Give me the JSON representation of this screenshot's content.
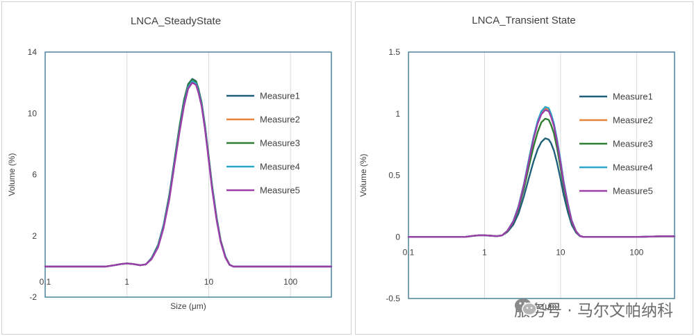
{
  "chart_data": [
    {
      "type": "line",
      "title": "LNCA_SteadyState",
      "xlabel": "Size (μm)",
      "ylabel": "Volume (%)",
      "xscale": "log",
      "xlim": [
        0.1,
        316
      ],
      "ylim": [
        -2,
        14
      ],
      "yticks": [
        14,
        10,
        6,
        2,
        -2
      ],
      "ytick_labels": [
        "14",
        "10",
        "6",
        "2",
        "-2"
      ],
      "xticks": [
        0.1,
        1,
        10,
        100
      ],
      "xtick_labels": [
        "0.1",
        "1",
        "10",
        "100"
      ],
      "grid": "vertical",
      "legend_position": "right",
      "x": [
        0.1,
        0.2,
        0.4,
        0.55,
        0.7,
        0.85,
        1,
        1.2,
        1.45,
        1.7,
        2,
        2.4,
        2.8,
        3.3,
        3.8,
        4.4,
        5,
        5.6,
        6.3,
        7,
        7.5,
        8.2,
        9,
        10,
        11,
        12.5,
        14,
        16,
        18,
        20,
        25,
        40,
        100,
        200,
        316
      ],
      "series": [
        {
          "name": "Measure1",
          "color": "#1f5f7a",
          "values": [
            0,
            0,
            0,
            0,
            0.08,
            0.16,
            0.2,
            0.16,
            0.08,
            0.14,
            0.55,
            1.4,
            2.7,
            4.7,
            6.9,
            9.2,
            10.9,
            11.9,
            12.25,
            12.1,
            11.6,
            10.7,
            9.2,
            7.2,
            5.3,
            3.2,
            1.7,
            0.65,
            0.12,
            0,
            0,
            0,
            0,
            0,
            0
          ]
        },
        {
          "name": "Measure2",
          "color": "#e8833a",
          "values": [
            0,
            0,
            0,
            0,
            0.08,
            0.16,
            0.2,
            0.16,
            0.08,
            0.14,
            0.5,
            1.3,
            2.6,
            4.5,
            6.7,
            9.0,
            10.7,
            11.8,
            12.15,
            12.0,
            11.5,
            10.6,
            9.1,
            7.1,
            5.2,
            3.1,
            1.65,
            0.6,
            0.1,
            0,
            0,
            0,
            0,
            0,
            0
          ]
        },
        {
          "name": "Measure3",
          "color": "#2e7d32",
          "values": [
            0,
            0,
            0,
            0,
            0.08,
            0.16,
            0.2,
            0.16,
            0.08,
            0.14,
            0.52,
            1.35,
            2.65,
            4.6,
            6.8,
            9.1,
            10.8,
            11.85,
            12.2,
            12.05,
            11.55,
            10.65,
            9.15,
            7.15,
            5.25,
            3.15,
            1.68,
            0.62,
            0.11,
            0,
            0,
            0,
            0,
            0,
            0
          ]
        },
        {
          "name": "Measure4",
          "color": "#2aa6c9",
          "values": [
            0,
            0,
            0,
            0,
            0.08,
            0.16,
            0.2,
            0.16,
            0.08,
            0.14,
            0.5,
            1.3,
            2.6,
            4.5,
            6.7,
            8.9,
            10.6,
            11.7,
            12.1,
            11.95,
            11.45,
            10.55,
            9.05,
            7.05,
            5.15,
            3.1,
            1.62,
            0.6,
            0.1,
            0,
            0,
            0,
            0,
            0,
            0
          ]
        },
        {
          "name": "Measure5",
          "color": "#9b3ea8",
          "values": [
            0,
            0,
            0,
            0,
            0.08,
            0.16,
            0.2,
            0.16,
            0.08,
            0.14,
            0.48,
            1.25,
            2.5,
            4.4,
            6.6,
            8.8,
            10.5,
            11.6,
            12.0,
            11.85,
            11.35,
            10.45,
            8.95,
            6.95,
            5.05,
            3.0,
            1.6,
            0.58,
            0.1,
            0,
            0,
            0,
            0,
            0,
            0
          ]
        }
      ]
    },
    {
      "type": "line",
      "title": "LNCA_Transient State",
      "xlabel": "Size (μm)",
      "ylabel": "Volume (%)",
      "xscale": "log",
      "xlim": [
        0.1,
        316
      ],
      "ylim": [
        -0.5,
        1.5
      ],
      "yticks": [
        1.5,
        1,
        0.5,
        0,
        -0.5
      ],
      "ytick_labels": [
        "1.5",
        "1",
        "0.5",
        "0",
        "-0.5"
      ],
      "xticks": [
        0.1,
        1,
        10,
        100
      ],
      "xtick_labels": [
        "0.1",
        "1",
        "10",
        "100"
      ],
      "grid": "vertical",
      "legend_position": "right",
      "x": [
        0.1,
        0.2,
        0.4,
        0.55,
        0.7,
        0.85,
        1,
        1.2,
        1.45,
        1.7,
        2,
        2.4,
        2.8,
        3.3,
        3.8,
        4.4,
        5,
        5.6,
        6.3,
        7,
        7.5,
        8.2,
        9,
        10,
        11,
        12.5,
        14,
        16,
        18,
        20,
        25,
        40,
        100,
        200,
        316
      ],
      "series": [
        {
          "name": "Measure1",
          "color": "#1f5f7a",
          "values": [
            0,
            0,
            0,
            0,
            0.008,
            0.013,
            0.013,
            0.01,
            0.006,
            0.012,
            0.04,
            0.1,
            0.19,
            0.33,
            0.47,
            0.61,
            0.71,
            0.77,
            0.8,
            0.79,
            0.76,
            0.7,
            0.6,
            0.47,
            0.34,
            0.2,
            0.1,
            0.035,
            0.006,
            0,
            0,
            0,
            0,
            0.005,
            0.005
          ]
        },
        {
          "name": "Measure2",
          "color": "#e8833a",
          "values": [
            0,
            0,
            0,
            0,
            0.008,
            0.013,
            0.013,
            0.01,
            0.006,
            0.012,
            0.05,
            0.13,
            0.25,
            0.43,
            0.61,
            0.8,
            0.93,
            1.01,
            1.045,
            1.035,
            0.99,
            0.91,
            0.78,
            0.61,
            0.44,
            0.26,
            0.13,
            0.045,
            0.008,
            0,
            0,
            0,
            0,
            0.005,
            0.005
          ]
        },
        {
          "name": "Measure3",
          "color": "#2e7d32",
          "values": [
            0,
            0,
            0,
            0,
            0.008,
            0.013,
            0.013,
            0.01,
            0.006,
            0.012,
            0.045,
            0.12,
            0.23,
            0.39,
            0.56,
            0.73,
            0.85,
            0.93,
            0.96,
            0.95,
            0.91,
            0.84,
            0.72,
            0.56,
            0.41,
            0.24,
            0.12,
            0.042,
            0.007,
            0,
            0,
            0,
            0,
            0.005,
            0.005
          ]
        },
        {
          "name": "Measure4",
          "color": "#2aa6c9",
          "values": [
            0,
            0,
            0,
            0,
            0.008,
            0.013,
            0.013,
            0.01,
            0.006,
            0.012,
            0.05,
            0.13,
            0.25,
            0.43,
            0.62,
            0.81,
            0.94,
            1.02,
            1.055,
            1.045,
            1.0,
            0.92,
            0.79,
            0.62,
            0.45,
            0.27,
            0.135,
            0.047,
            0.008,
            0,
            0,
            0,
            0,
            0.005,
            0.005
          ]
        },
        {
          "name": "Measure5",
          "color": "#9b3ea8",
          "values": [
            0,
            0,
            0,
            0,
            0.008,
            0.013,
            0.013,
            0.01,
            0.006,
            0.012,
            0.048,
            0.125,
            0.24,
            0.42,
            0.6,
            0.79,
            0.92,
            0.995,
            1.03,
            1.02,
            0.975,
            0.9,
            0.77,
            0.6,
            0.435,
            0.26,
            0.13,
            0.045,
            0.008,
            0,
            0,
            0,
            0,
            0.005,
            0.005
          ]
        }
      ]
    }
  ],
  "watermark": {
    "text": "服务号 · 马尔文帕纳科",
    "icon": "wechat-icon"
  }
}
